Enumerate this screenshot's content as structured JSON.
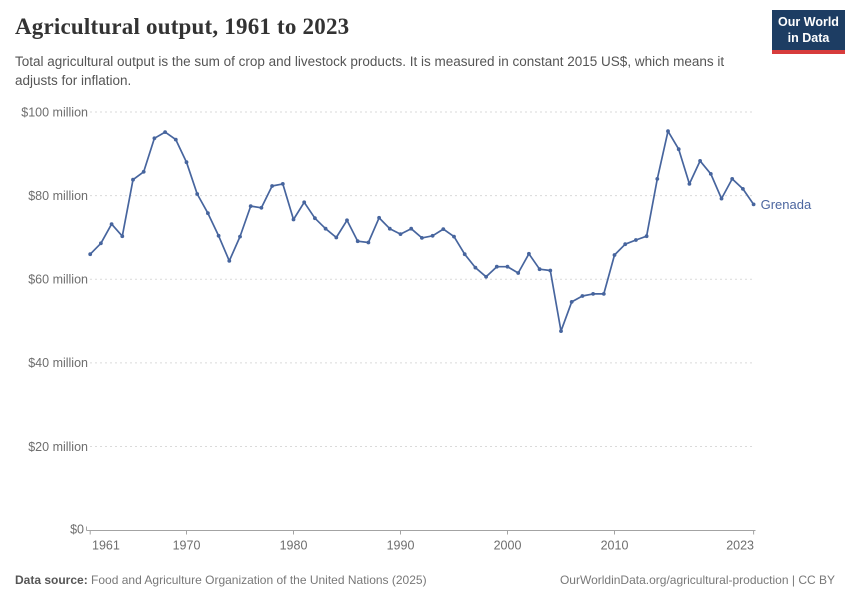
{
  "header": {
    "title": "Agricultural output, 1961 to 2023",
    "subtitle": "Total agricultural output is the sum of crop and livestock products. It is measured in constant 2015 US$, which means it adjusts for inflation.",
    "logo": {
      "line1": "Our World",
      "line2": "in Data"
    }
  },
  "chart_data": {
    "type": "line",
    "title": "Agricultural output, 1961 to 2023",
    "xlabel": "",
    "ylabel": "",
    "unit": "constant 2015 US$",
    "grid": "horizontal-dashed",
    "legend_position": "end-of-line-label",
    "xlim": [
      1961,
      2023
    ],
    "ylim": [
      0,
      100000000
    ],
    "x_ticks": [
      1961,
      1970,
      1980,
      1990,
      2000,
      2010,
      2023
    ],
    "y_ticks": [
      {
        "value": 0,
        "label": "$0"
      },
      {
        "value": 20,
        "label": "$20 million"
      },
      {
        "value": 40,
        "label": "$40 million"
      },
      {
        "value": 60,
        "label": "$60 million"
      },
      {
        "value": 80,
        "label": "$80 million"
      },
      {
        "value": 100,
        "label": "$100 million"
      }
    ],
    "x": [
      1961,
      1962,
      1963,
      1964,
      1965,
      1966,
      1967,
      1968,
      1969,
      1970,
      1971,
      1972,
      1973,
      1974,
      1975,
      1976,
      1977,
      1978,
      1979,
      1980,
      1981,
      1982,
      1983,
      1984,
      1985,
      1986,
      1987,
      1988,
      1989,
      1990,
      1991,
      1992,
      1993,
      1994,
      1995,
      1996,
      1997,
      1998,
      1999,
      2000,
      2001,
      2002,
      2003,
      2004,
      2005,
      2006,
      2007,
      2008,
      2009,
      2010,
      2011,
      2012,
      2013,
      2014,
      2015,
      2016,
      2017,
      2018,
      2019,
      2020,
      2021,
      2022,
      2023
    ],
    "series": [
      {
        "name": "Grenada",
        "color": "#47659e",
        "values_unit": "million constant 2015 US$",
        "values": [
          66.0,
          68.6,
          73.2,
          70.3,
          83.8,
          85.7,
          93.7,
          95.2,
          93.4,
          88.0,
          80.4,
          75.8,
          70.4,
          64.4,
          70.2,
          77.5,
          77.1,
          82.3,
          82.8,
          74.3,
          78.4,
          74.6,
          72.1,
          70.0,
          74.1,
          69.1,
          68.8,
          74.7,
          72.1,
          70.8,
          72.1,
          69.9,
          70.4,
          72.0,
          70.2,
          66.0,
          62.8,
          60.6,
          63.0,
          63.0,
          61.5,
          66.1,
          62.4,
          62.1,
          47.6,
          54.6,
          56.0,
          56.5,
          56.5,
          65.8,
          68.4,
          69.4,
          70.3,
          84.0,
          95.4,
          91.1,
          82.8,
          88.3,
          85.2,
          79.3,
          84.0,
          81.6,
          77.9
        ]
      }
    ]
  },
  "footer": {
    "datasource_label": "Data source:",
    "datasource_text": " Food and Agriculture Organization of the United Nations (2025)",
    "url_text": "OurWorldinData.org/agricultural-production",
    "license_text": " | CC BY"
  },
  "colors": {
    "line": "#47659e",
    "entity_label": "#4c669f",
    "grid": "#dadada",
    "axis": "#a3a3a3",
    "tick_label": "#6e6e6e",
    "logo_bg": "#1d3d63",
    "logo_underline": "#d73c3c"
  }
}
